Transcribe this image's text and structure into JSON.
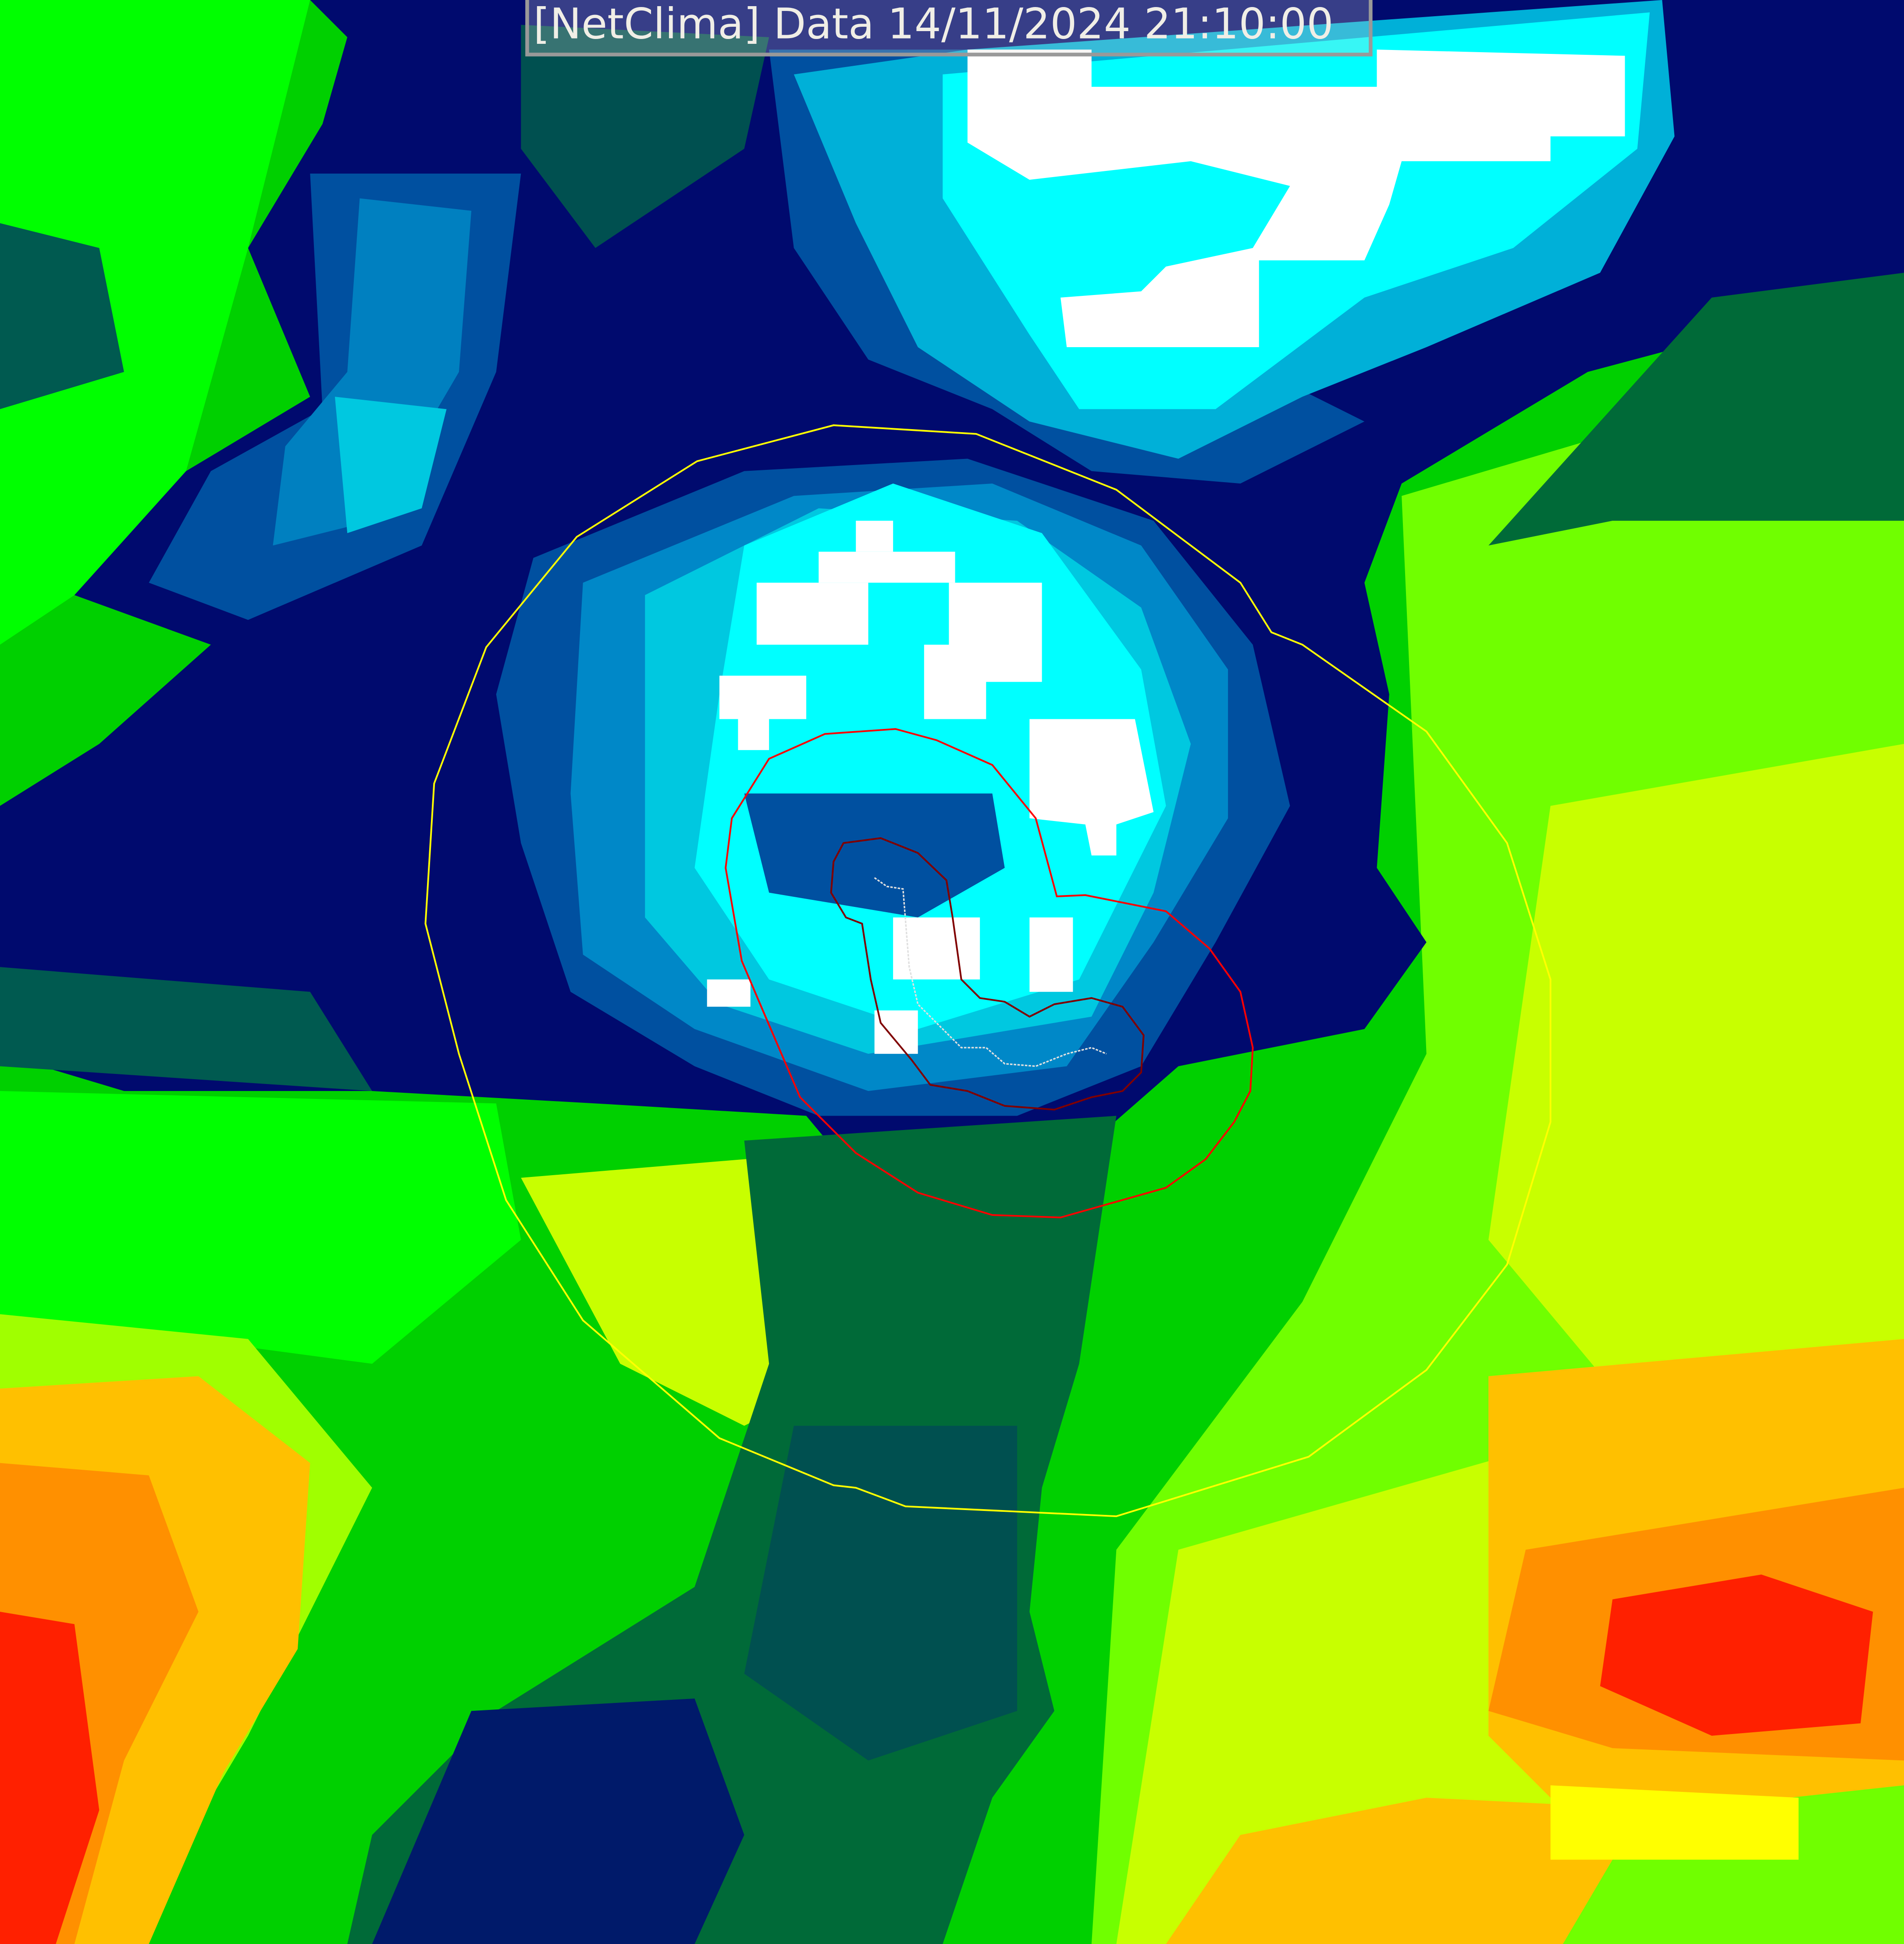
{
  "header": {
    "title": "[NetClima] Data 14/11/2024 21:10:00"
  },
  "colors": {
    "contour_outer": "#ffff00",
    "contour_mid": "#ff0000",
    "contour_inner": "#800000",
    "track": "#e0e0e0",
    "scale": [
      "#ff0000",
      "#ffa000",
      "#ffff00",
      "#a0ff00",
      "#00ff00",
      "#00c800",
      "#006a38",
      "#001070",
      "#0050a0",
      "#00b0d8",
      "#00ffff",
      "#ffffff"
    ]
  }
}
